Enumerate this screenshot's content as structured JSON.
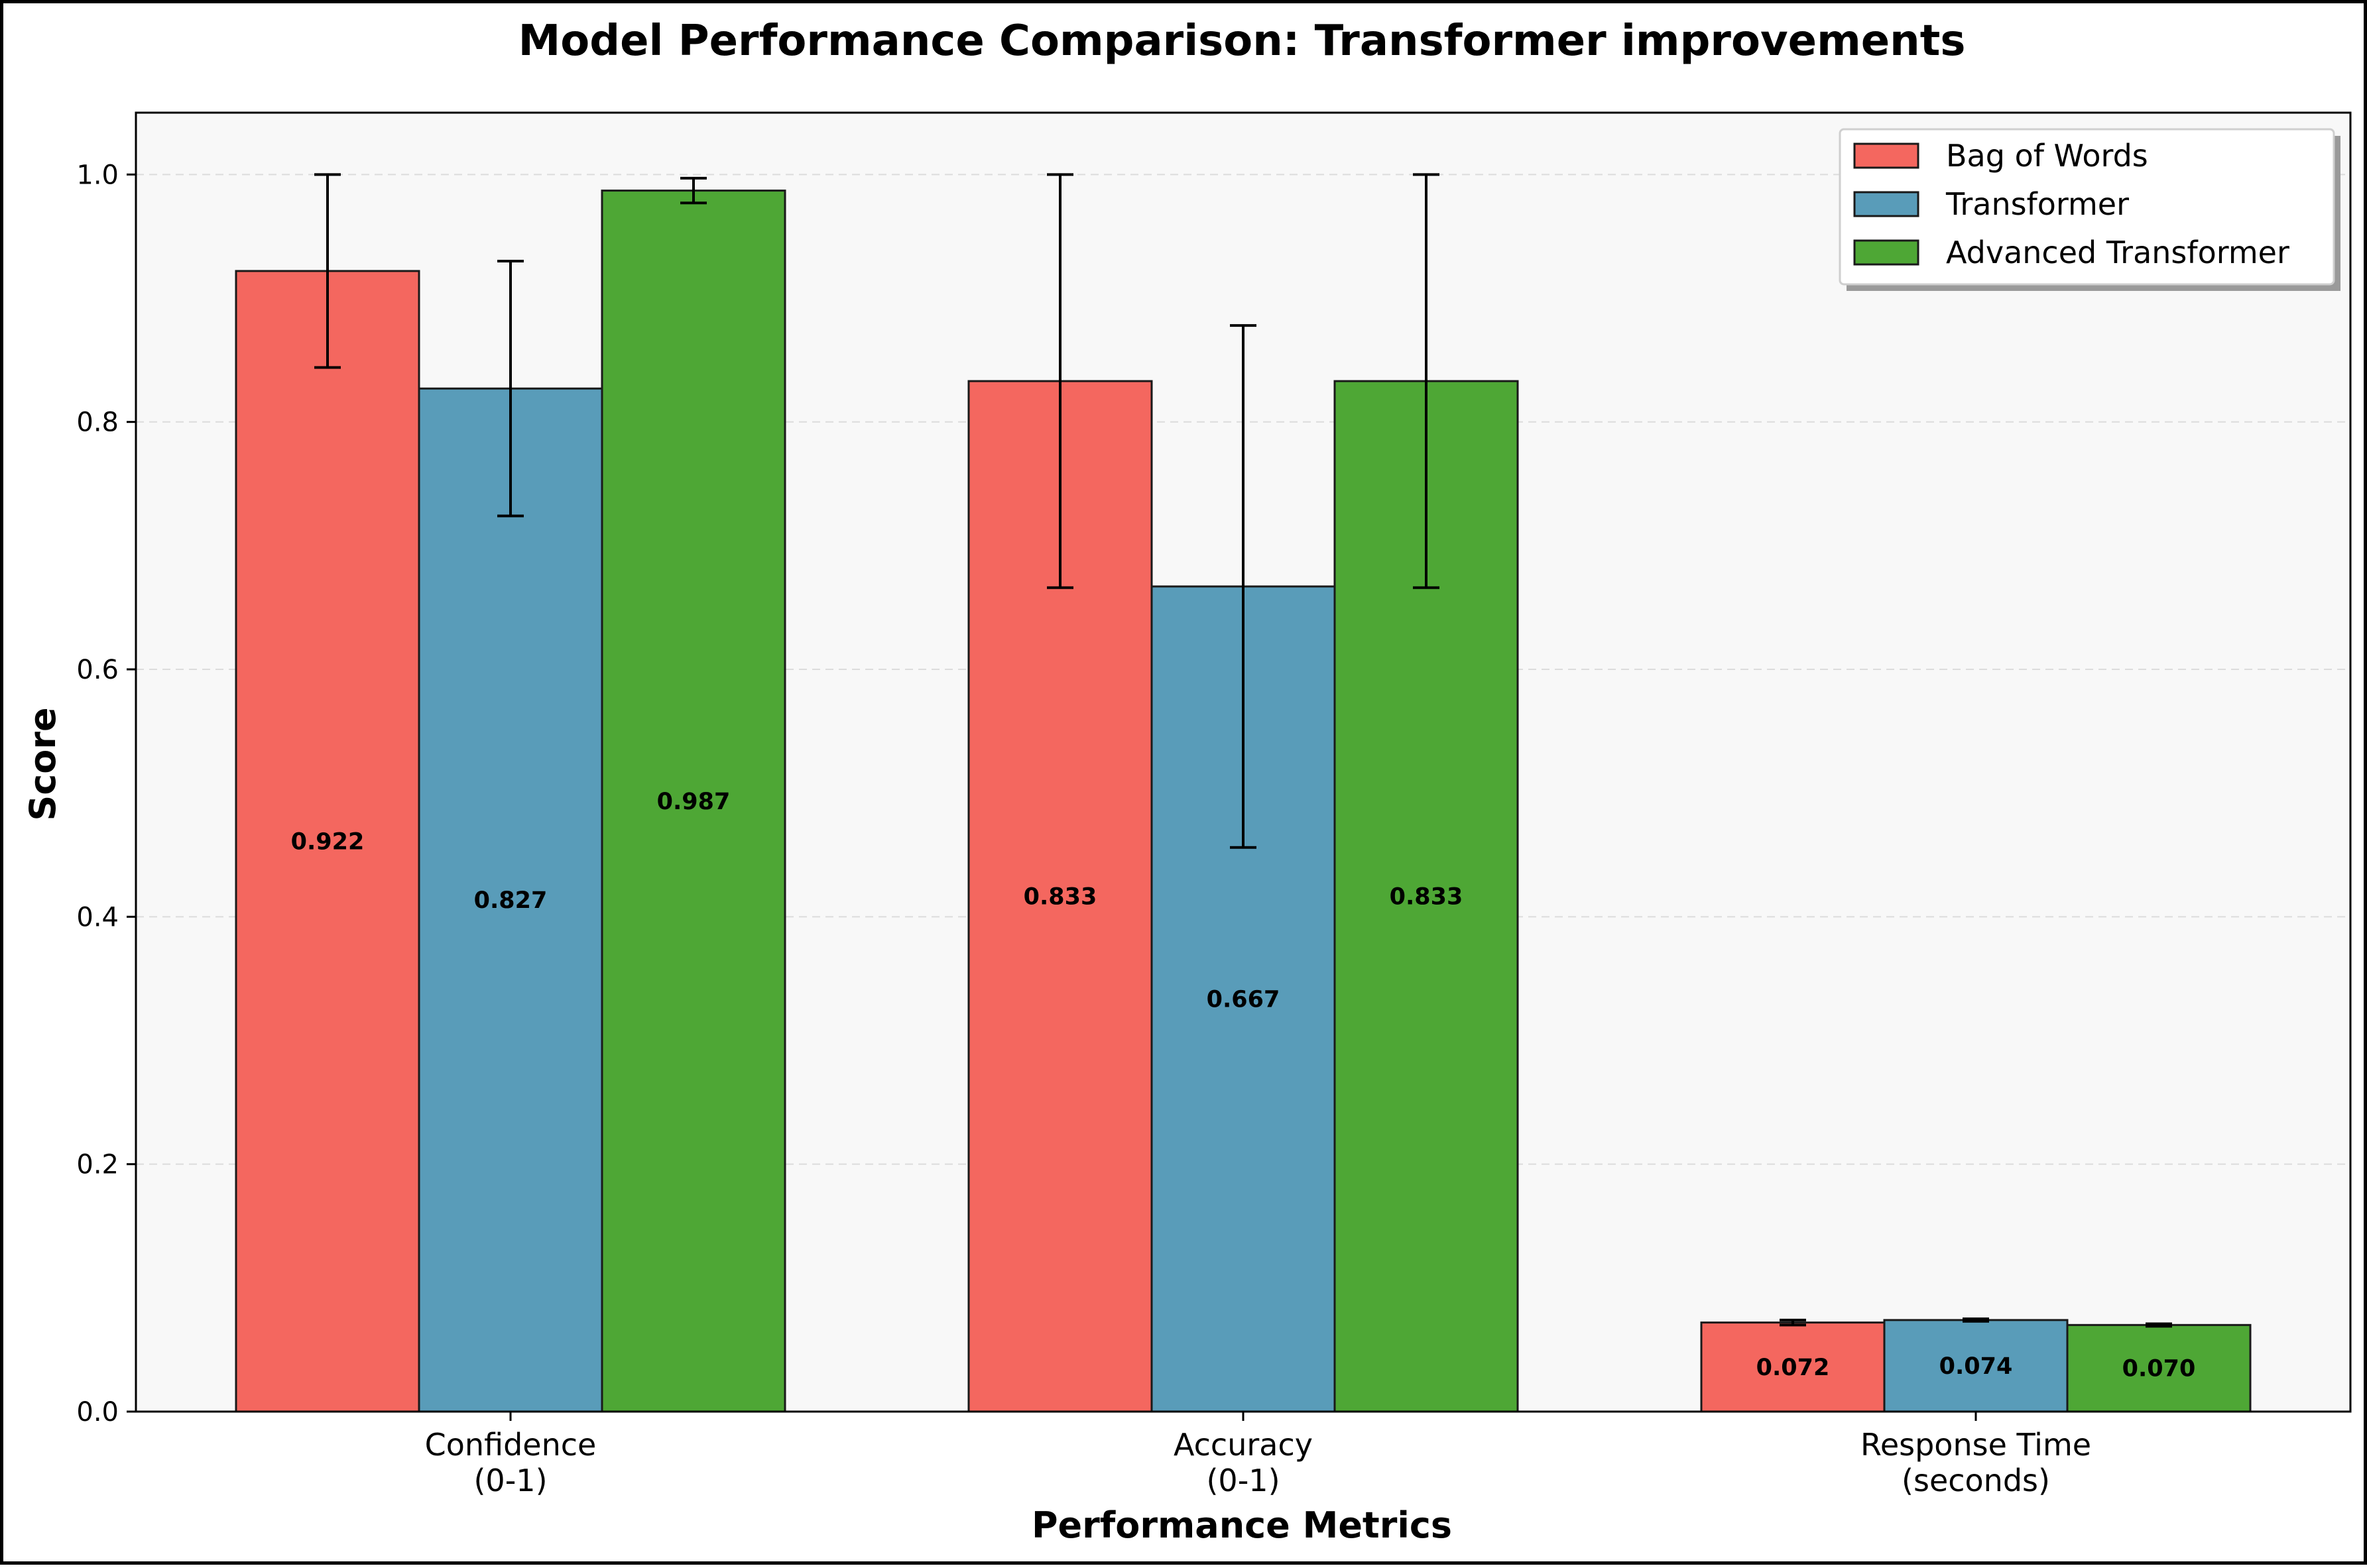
{
  "chart_data": {
    "type": "bar",
    "title": "Model Performance Comparison: Transformer improvements",
    "xlabel": "Performance Metrics",
    "ylabel": "Score",
    "ylim": [
      0,
      1.05
    ],
    "yticks": [
      "0.0",
      "0.2",
      "0.4",
      "0.6",
      "0.8",
      "1.0"
    ],
    "grid": "y-dashed",
    "legend_position": "top-right",
    "categories": [
      [
        "Confidence",
        "(0-1)"
      ],
      [
        "Accuracy",
        "(0-1)"
      ],
      [
        "Response Time",
        "(seconds)"
      ]
    ],
    "series": [
      {
        "name": "Bag of Words",
        "color": "#f4675f",
        "values": [
          0.922,
          0.833,
          0.072
        ],
        "labels": [
          "0.922",
          "0.833",
          "0.072"
        ],
        "errors": [
          0.078,
          0.167,
          0.002
        ]
      },
      {
        "name": "Transformer",
        "color": "#599cb9",
        "values": [
          0.827,
          0.667,
          0.074
        ],
        "labels": [
          "0.827",
          "0.667",
          "0.074"
        ],
        "errors": [
          0.103,
          0.211,
          0.001
        ]
      },
      {
        "name": "Advanced Transformer",
        "color": "#4ea735",
        "values": [
          0.987,
          0.833,
          0.07
        ],
        "labels": [
          "0.987",
          "0.833",
          "0.070"
        ],
        "errors": [
          0.01,
          0.167,
          0.001
        ]
      }
    ]
  }
}
